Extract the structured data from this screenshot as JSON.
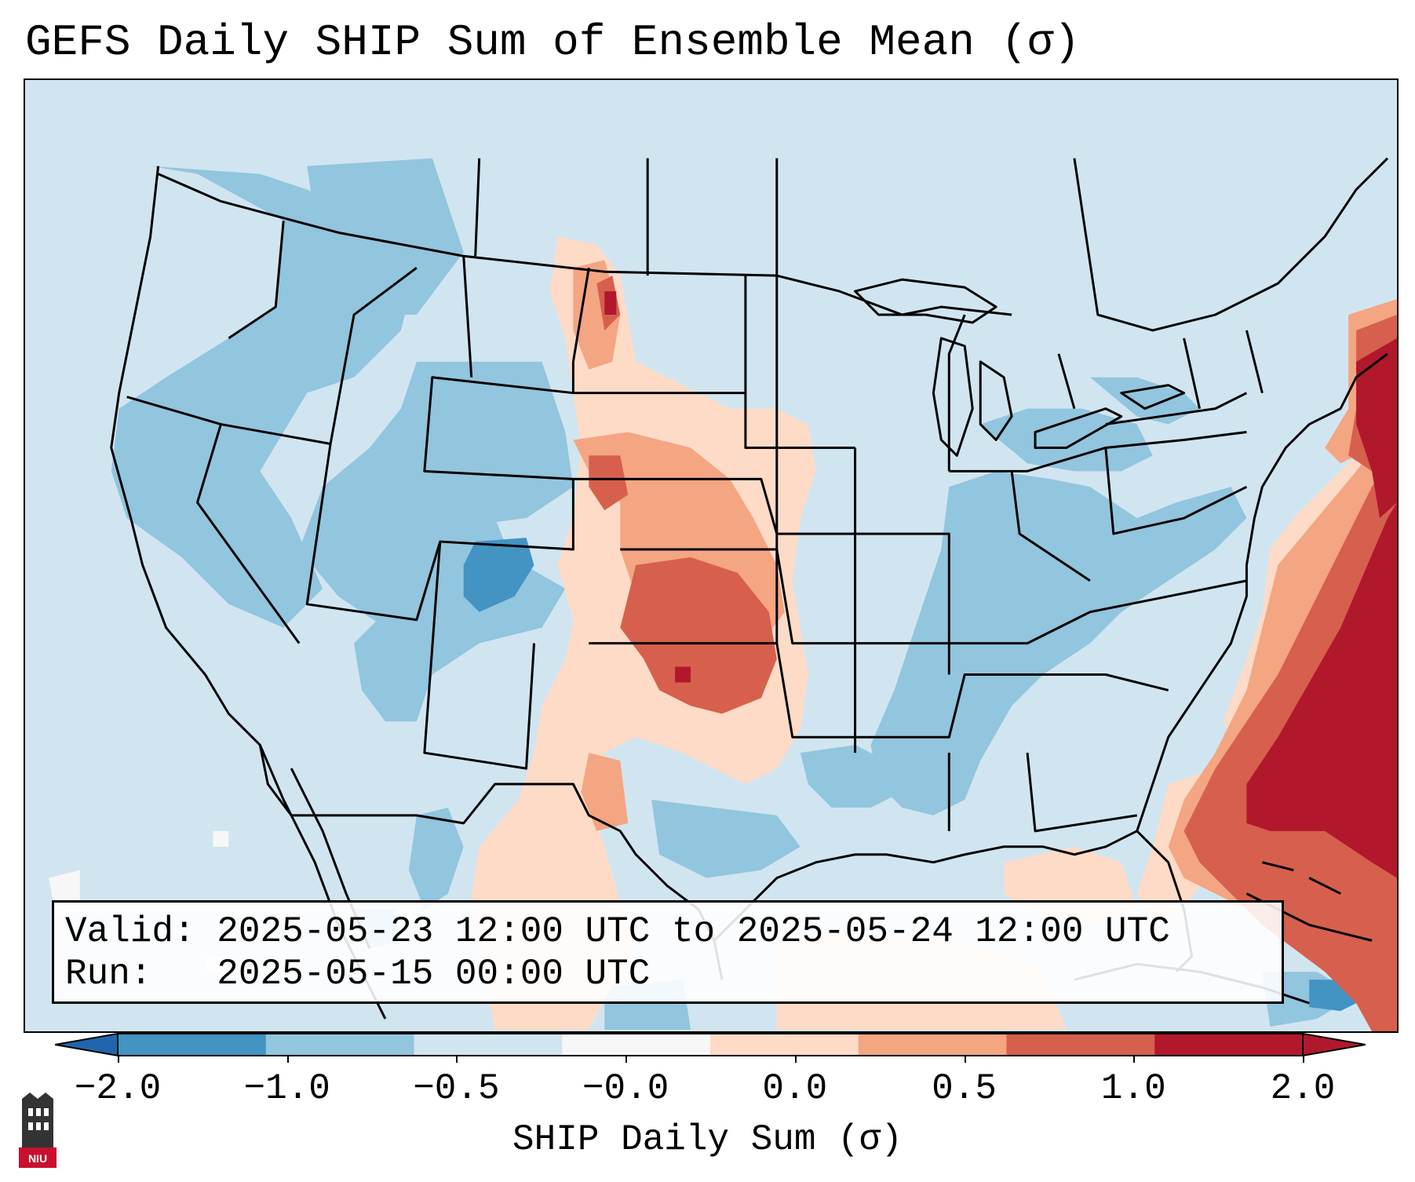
{
  "title": "GEFS Daily SHIP Sum of Ensemble Mean (σ)",
  "info": {
    "valid_label": "Valid:",
    "valid_value": "2025-05-23 12:00 UTC to 2025-05-24 12:00 UTC",
    "run_label": "Run:",
    "run_value": "2025-05-15 00:00 UTC"
  },
  "colorbar": {
    "title": "SHIP Daily Sum (σ)",
    "ticks": [
      "−2.0",
      "−1.0",
      "−0.5",
      "−0.0",
      "0.0",
      "0.5",
      "1.0",
      "2.0"
    ],
    "colors": [
      "#4393c3",
      "#92c5de",
      "#d1e5f0",
      "#f7f7f7",
      "#fddbc7",
      "#f4a582",
      "#d6604d",
      "#b2182b"
    ],
    "extend_low_color": "#2166ac",
    "extend_high_color": "#b2182b"
  },
  "logo": {
    "text": "NIU",
    "color": "#c8102e"
  },
  "map": {
    "ocean_color": "#d1e5f0",
    "border_color": "#000000"
  }
}
